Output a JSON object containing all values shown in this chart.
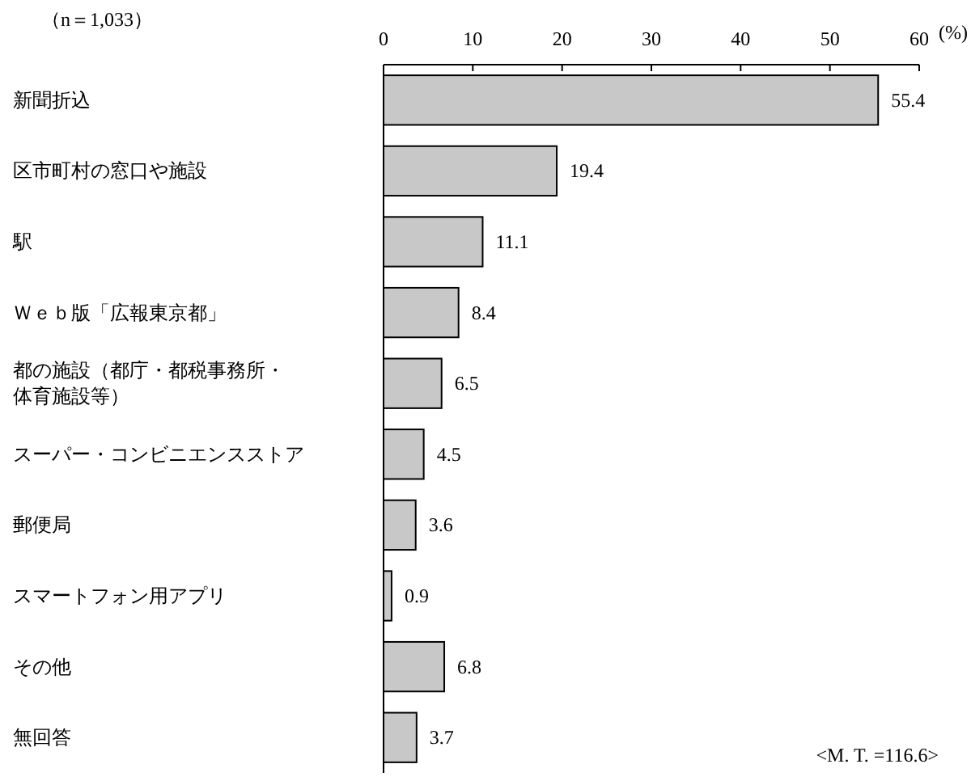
{
  "chart_data": {
    "type": "bar",
    "orientation": "horizontal",
    "title": "（n＝1,033）",
    "xlabel": "(%)",
    "categories": [
      "新聞折込",
      "区市町村の窓口や施設",
      "駅",
      "Ｗｅｂ版「広報東京都」",
      "都の施設（都庁・都税事務所・体育施設等）",
      "スーパー・コンビニエンスストア",
      "郵便局",
      "スマートフォン用アプリ",
      "その他",
      "無回答"
    ],
    "values": [
      55.4,
      19.4,
      11.1,
      8.4,
      6.5,
      4.5,
      3.6,
      0.9,
      6.8,
      3.7
    ],
    "color": "#c8c8c8",
    "xlim": [
      0,
      60
    ],
    "xticks": [
      0,
      10,
      20,
      30,
      40,
      50,
      60
    ],
    "grid": false,
    "data_labels": true,
    "annotations": [
      "<M. T. =116.6>"
    ]
  }
}
